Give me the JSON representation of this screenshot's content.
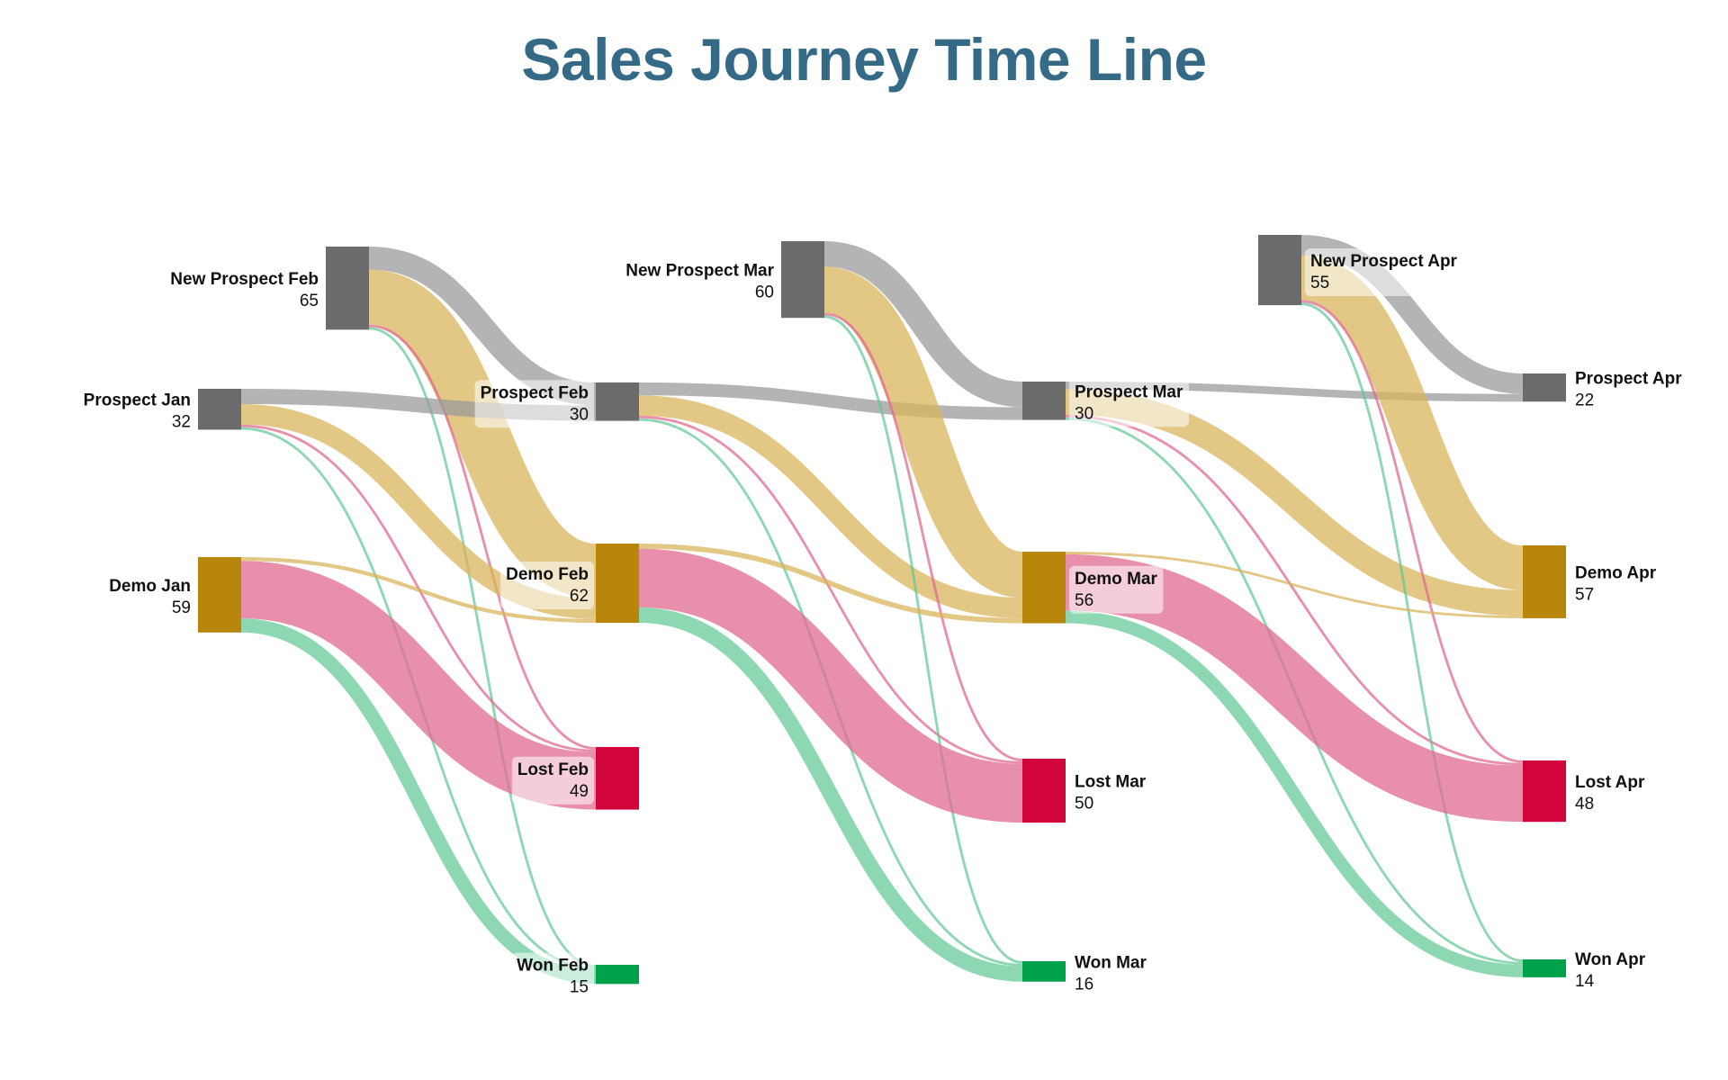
{
  "chart_data": {
    "type": "sankey",
    "title": "Sales Journey Time Line",
    "colors": {
      "Prospect": "#6b6b6b",
      "Demo": "#b8860b",
      "Lost": "#d2043c",
      "Won": "#00a14b",
      "link_Prospect": "#9b9b9b",
      "link_Demo": "#d9b45c",
      "link_Lost": "#e06b8f",
      "link_Won": "#5cc891"
    },
    "nodes": [
      {
        "id": "prospect_jan",
        "label": "Prospect Jan",
        "value": 32,
        "category": "Prospect",
        "period": "Jan"
      },
      {
        "id": "demo_jan",
        "label": "Demo Jan",
        "value": 59,
        "category": "Demo",
        "period": "Jan"
      },
      {
        "id": "newprospect_feb",
        "label": "New Prospect Feb",
        "value": 65,
        "category": "Prospect",
        "period": "Jan"
      },
      {
        "id": "prospect_feb",
        "label": "Prospect Feb",
        "value": 30,
        "category": "Prospect",
        "period": "Feb"
      },
      {
        "id": "demo_feb",
        "label": "Demo Feb",
        "value": 62,
        "category": "Demo",
        "period": "Feb"
      },
      {
        "id": "lost_feb",
        "label": "Lost Feb",
        "value": 49,
        "category": "Lost",
        "period": "Feb"
      },
      {
        "id": "won_feb",
        "label": "Won Feb",
        "value": 15,
        "category": "Won",
        "period": "Feb"
      },
      {
        "id": "newprospect_mar",
        "label": "New Prospect Mar",
        "value": 60,
        "category": "Prospect",
        "period": "Feb"
      },
      {
        "id": "prospect_mar",
        "label": "Prospect Mar",
        "value": 30,
        "category": "Prospect",
        "period": "Mar"
      },
      {
        "id": "demo_mar",
        "label": "Demo Mar",
        "value": 56,
        "category": "Demo",
        "period": "Mar"
      },
      {
        "id": "lost_mar",
        "label": "Lost Mar",
        "value": 50,
        "category": "Lost",
        "period": "Mar"
      },
      {
        "id": "won_mar",
        "label": "Won Mar",
        "value": 16,
        "category": "Won",
        "period": "Mar"
      },
      {
        "id": "newprospect_apr",
        "label": "New Prospect Apr",
        "value": 55,
        "category": "Prospect",
        "period": "Mar"
      },
      {
        "id": "prospect_apr",
        "label": "Prospect Apr",
        "value": 22,
        "category": "Prospect",
        "period": "Apr"
      },
      {
        "id": "demo_apr",
        "label": "Demo Apr",
        "value": 57,
        "category": "Demo",
        "period": "Apr"
      },
      {
        "id": "lost_apr",
        "label": "Lost Apr",
        "value": 48,
        "category": "Lost",
        "period": "Apr"
      },
      {
        "id": "won_apr",
        "label": "Won Apr",
        "value": 14,
        "category": "Won",
        "period": "Apr"
      }
    ],
    "links": [
      {
        "source": "newprospect_feb",
        "target": "prospect_feb",
        "value": 18
      },
      {
        "source": "newprospect_feb",
        "target": "demo_feb",
        "value": 43
      },
      {
        "source": "newprospect_feb",
        "target": "lost_feb",
        "value": 2
      },
      {
        "source": "newprospect_feb",
        "target": "won_feb",
        "value": 2
      },
      {
        "source": "prospect_jan",
        "target": "prospect_feb",
        "value": 12
      },
      {
        "source": "prospect_jan",
        "target": "demo_feb",
        "value": 16
      },
      {
        "source": "prospect_jan",
        "target": "lost_feb",
        "value": 2
      },
      {
        "source": "prospect_jan",
        "target": "won_feb",
        "value": 2
      },
      {
        "source": "demo_jan",
        "target": "demo_feb",
        "value": 3
      },
      {
        "source": "demo_jan",
        "target": "lost_feb",
        "value": 45
      },
      {
        "source": "demo_jan",
        "target": "won_feb",
        "value": 11
      },
      {
        "source": "prospect_feb",
        "target": "prospect_mar",
        "value": 10
      },
      {
        "source": "prospect_feb",
        "target": "demo_mar",
        "value": 16
      },
      {
        "source": "prospect_feb",
        "target": "lost_mar",
        "value": 2
      },
      {
        "source": "prospect_feb",
        "target": "won_mar",
        "value": 2
      },
      {
        "source": "newprospect_mar",
        "target": "prospect_mar",
        "value": 20
      },
      {
        "source": "newprospect_mar",
        "target": "demo_mar",
        "value": 36
      },
      {
        "source": "newprospect_mar",
        "target": "lost_mar",
        "value": 2
      },
      {
        "source": "newprospect_mar",
        "target": "won_mar",
        "value": 2
      },
      {
        "source": "demo_feb",
        "target": "demo_mar",
        "value": 4
      },
      {
        "source": "demo_feb",
        "target": "lost_mar",
        "value": 46
      },
      {
        "source": "demo_feb",
        "target": "won_mar",
        "value": 12
      },
      {
        "source": "prospect_mar",
        "target": "prospect_apr",
        "value": 6
      },
      {
        "source": "prospect_mar",
        "target": "demo_apr",
        "value": 20
      },
      {
        "source": "prospect_mar",
        "target": "lost_apr",
        "value": 2
      },
      {
        "source": "prospect_mar",
        "target": "won_apr",
        "value": 2
      },
      {
        "source": "newprospect_apr",
        "target": "prospect_apr",
        "value": 16
      },
      {
        "source": "newprospect_apr",
        "target": "demo_apr",
        "value": 35
      },
      {
        "source": "newprospect_apr",
        "target": "lost_apr",
        "value": 2
      },
      {
        "source": "newprospect_apr",
        "target": "won_apr",
        "value": 2
      },
      {
        "source": "demo_mar",
        "target": "demo_apr",
        "value": 2
      },
      {
        "source": "demo_mar",
        "target": "lost_apr",
        "value": 44
      },
      {
        "source": "demo_mar",
        "target": "won_apr",
        "value": 10
      }
    ]
  }
}
